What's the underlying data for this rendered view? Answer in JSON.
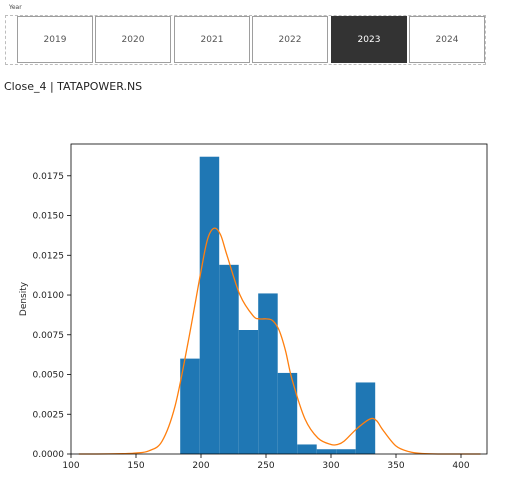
{
  "slicer": {
    "label": "Year",
    "options": [
      "2019",
      "2020",
      "2021",
      "2022",
      "2023",
      "2024"
    ],
    "selected": "2023",
    "selected_color": "#333333"
  },
  "visual": {
    "title": "Close_4 | TATAPOWER.NS"
  },
  "chart_data": {
    "type": "bar",
    "subtype": "histogram-with-kde",
    "title": "",
    "xlabel": "",
    "ylabel": "Density",
    "xlim": [
      100,
      420
    ],
    "ylim": [
      0,
      0.0195
    ],
    "grid": false,
    "xticks": [
      100,
      150,
      200,
      250,
      300,
      350,
      400
    ],
    "yticks": [
      0.0,
      0.0025,
      0.005,
      0.0075,
      0.01,
      0.0125,
      0.015,
      0.0175
    ],
    "ytick_labels": [
      "0.0000",
      "0.0025",
      "0.0050",
      "0.0075",
      "0.0100",
      "0.0125",
      "0.0150",
      "0.0175"
    ],
    "histogram": {
      "color": "#1f77b4",
      "bins": [
        {
          "x0": 184,
          "x1": 199,
          "density": 0.006
        },
        {
          "x0": 199,
          "x1": 214,
          "density": 0.0187
        },
        {
          "x0": 214,
          "x1": 229,
          "density": 0.0119
        },
        {
          "x0": 229,
          "x1": 244,
          "density": 0.0078
        },
        {
          "x0": 244,
          "x1": 259,
          "density": 0.0101
        },
        {
          "x0": 259,
          "x1": 274,
          "density": 0.0051
        },
        {
          "x0": 274,
          "x1": 289,
          "density": 0.0006
        },
        {
          "x0": 289,
          "x1": 304,
          "density": 0.0003
        },
        {
          "x0": 304,
          "x1": 319,
          "density": 0.0003
        },
        {
          "x0": 319,
          "x1": 334,
          "density": 0.0045
        }
      ]
    },
    "kde": {
      "color": "#ff7f0e",
      "points": [
        [
          106,
          0.0
        ],
        [
          120,
          0.0
        ],
        [
          140,
          2e-05
        ],
        [
          150,
          6e-05
        ],
        [
          160,
          0.0002
        ],
        [
          170,
          0.0008
        ],
        [
          180,
          0.003
        ],
        [
          190,
          0.007
        ],
        [
          200,
          0.0115
        ],
        [
          205,
          0.0135
        ],
        [
          210,
          0.0142
        ],
        [
          215,
          0.0138
        ],
        [
          220,
          0.0125
        ],
        [
          230,
          0.01
        ],
        [
          240,
          0.0087
        ],
        [
          245,
          0.0085
        ],
        [
          250,
          0.0085
        ],
        [
          255,
          0.0084
        ],
        [
          260,
          0.0078
        ],
        [
          265,
          0.0065
        ],
        [
          270,
          0.0047
        ],
        [
          280,
          0.0022
        ],
        [
          290,
          0.001
        ],
        [
          300,
          0.0006
        ],
        [
          305,
          0.0006
        ],
        [
          310,
          0.0008
        ],
        [
          320,
          0.0016
        ],
        [
          330,
          0.0022
        ],
        [
          335,
          0.0021
        ],
        [
          340,
          0.0015
        ],
        [
          350,
          0.0005
        ],
        [
          360,
          0.00015
        ],
        [
          370,
          3e-05
        ],
        [
          385,
          0.0
        ],
        [
          400,
          0.0
        ],
        [
          415,
          0.0
        ]
      ]
    }
  }
}
